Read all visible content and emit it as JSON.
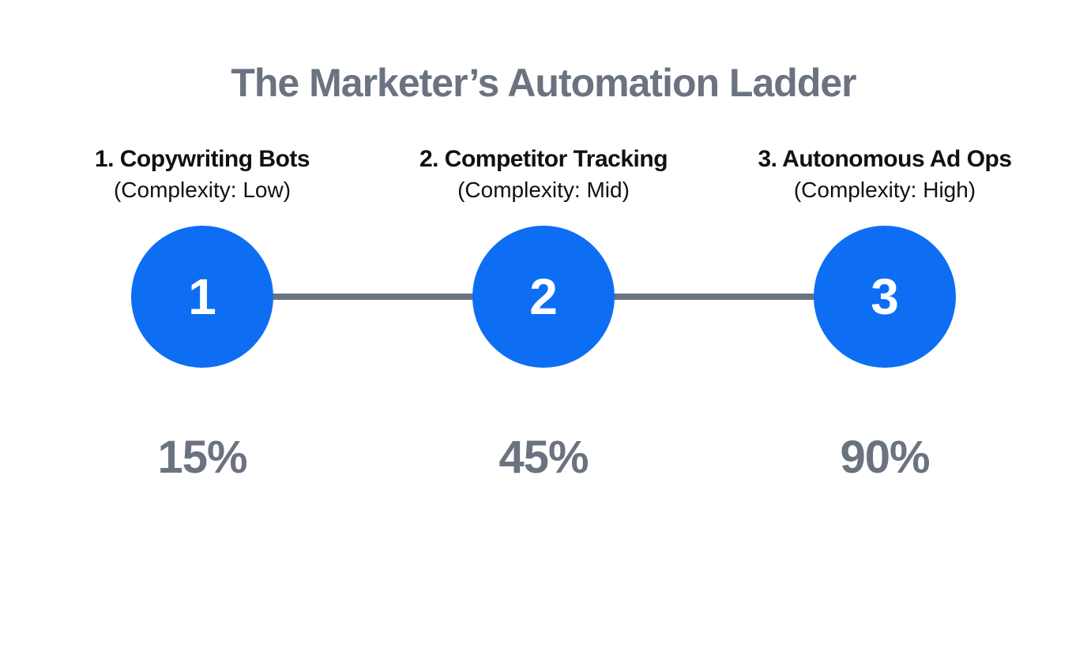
{
  "title": "The Marketer’s Automation Ladder",
  "colors": {
    "accent_blue": "#0d6ef4",
    "slate_gray": "#6b7280",
    "text_black": "#111111",
    "background": "#ffffff"
  },
  "steps": [
    {
      "name": "1. Copywriting Bots",
      "complexity": "(Complexity: Low)",
      "number": "1",
      "percent": "15%"
    },
    {
      "name": "2. Competitor Tracking",
      "complexity": "(Complexity: Mid)",
      "number": "2",
      "percent": "45%"
    },
    {
      "name": "3. Autonomous Ad Ops",
      "complexity": "(Complexity: High)",
      "number": "3",
      "percent": "90%"
    }
  ]
}
